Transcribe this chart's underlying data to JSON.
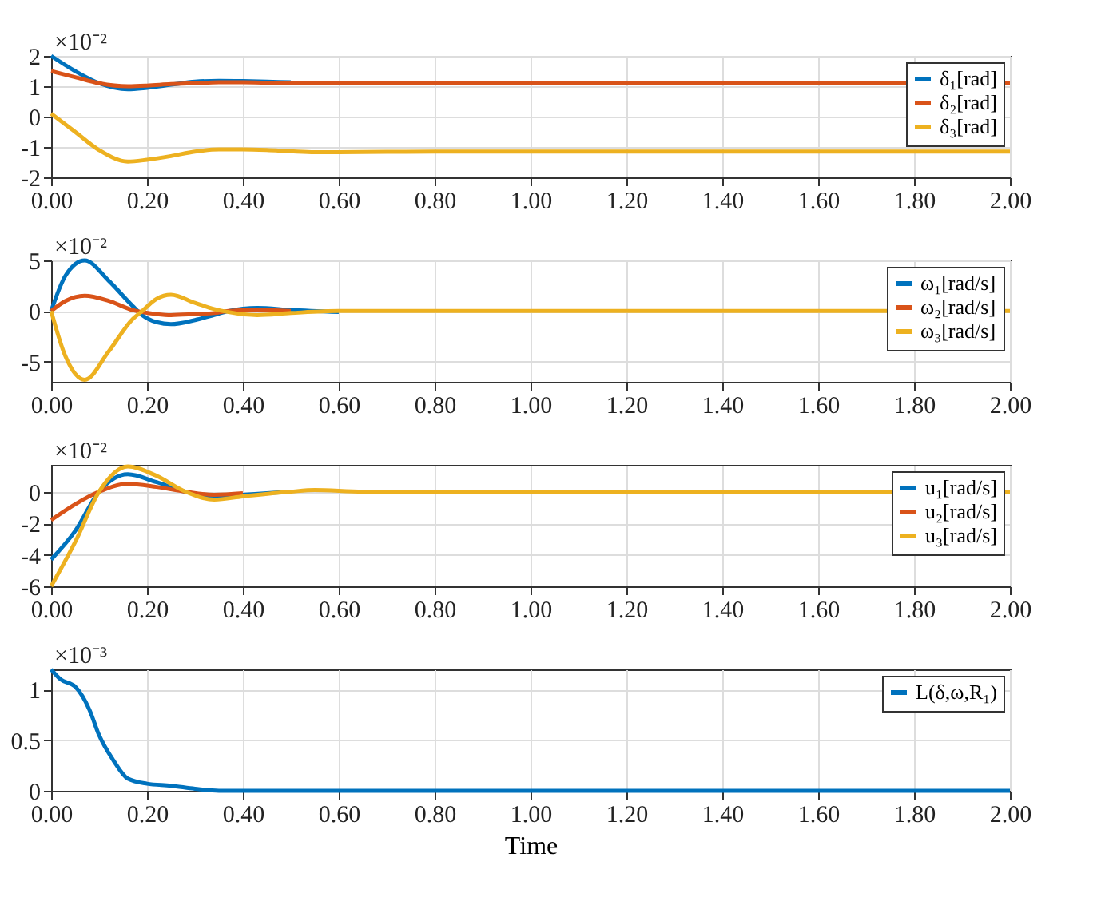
{
  "chart_data": [
    {
      "type": "line",
      "annotations": [
        "×10⁻²"
      ],
      "xlim": [
        0,
        2
      ],
      "xticks": [
        {
          "value": 0,
          "label": "0.00"
        },
        {
          "value": 0.2,
          "label": "0.20"
        },
        {
          "value": 0.4,
          "label": "0.40"
        },
        {
          "value": 0.6,
          "label": "0.60"
        },
        {
          "value": 0.8,
          "label": "0.80"
        },
        {
          "value": 1,
          "label": "1.00"
        },
        {
          "value": 1.2,
          "label": "1.20"
        },
        {
          "value": 1.4,
          "label": "1.40"
        },
        {
          "value": 1.6,
          "label": "1.60"
        },
        {
          "value": 1.8,
          "label": "1.80"
        },
        {
          "value": 2,
          "label": "2.00"
        }
      ],
      "ylim": [
        -2,
        2
      ],
      "yticks": [
        -2,
        -1,
        0,
        1,
        2
      ],
      "grid": true,
      "legend": "top right",
      "line_style": "solid",
      "marker": "none",
      "x": [
        0,
        0.05,
        0.1,
        0.16,
        0.2,
        0.25,
        0.3,
        0.35,
        0.4,
        0.45,
        0.5,
        0.55,
        0.6,
        0.8,
        1.0,
        1.5,
        2.0
      ],
      "series": [
        {
          "name": "δ₁[rad]",
          "color": "#0072bd",
          "values": [
            2.0,
            1.5,
            1.1,
            0.9,
            0.95,
            1.05,
            1.15,
            1.18,
            1.17,
            1.15,
            1.13,
            null,
            null,
            null,
            null,
            null,
            null
          ]
        },
        {
          "name": "δ₂[rad]",
          "color": "#d95319",
          "values": [
            1.5,
            1.3,
            1.1,
            1.0,
            1.02,
            1.07,
            1.1,
            1.13,
            1.13,
            1.12,
            1.12,
            1.12,
            1.12,
            1.12,
            1.12,
            1.12,
            1.12
          ]
        },
        {
          "name": "δ₃[rad]",
          "color": "#edb120",
          "values": [
            0.1,
            -0.5,
            -1.1,
            -1.48,
            -1.42,
            -1.3,
            -1.15,
            -1.08,
            -1.08,
            -1.1,
            -1.14,
            -1.17,
            -1.17,
            -1.15,
            -1.15,
            -1.15,
            -1.15
          ]
        }
      ]
    },
    {
      "type": "line",
      "annotations": [
        "×10⁻²"
      ],
      "xlim": [
        0,
        2
      ],
      "xticks": [
        {
          "value": 0,
          "label": "0.00"
        },
        {
          "value": 0.2,
          "label": "0.20"
        },
        {
          "value": 0.4,
          "label": "0.40"
        },
        {
          "value": 0.6,
          "label": "0.60"
        },
        {
          "value": 0.8,
          "label": "0.80"
        },
        {
          "value": 1,
          "label": "1.00"
        },
        {
          "value": 1.2,
          "label": "1.20"
        },
        {
          "value": 1.4,
          "label": "1.40"
        },
        {
          "value": 1.6,
          "label": "1.60"
        },
        {
          "value": 1.8,
          "label": "1.80"
        },
        {
          "value": 2,
          "label": "2.00"
        }
      ],
      "ylim": [
        -7,
        5
      ],
      "yticks": [
        -5,
        0,
        5
      ],
      "grid": true,
      "legend": "top right",
      "line_style": "solid",
      "marker": "none",
      "x": [
        0,
        0.03,
        0.07,
        0.12,
        0.17,
        0.19,
        0.22,
        0.25,
        0.3,
        0.34,
        0.37,
        0.43,
        0.5,
        0.6,
        0.7,
        1.0,
        1.5,
        2.0
      ],
      "series": [
        {
          "name": "ω₁[rad/s]",
          "color": "#0072bd",
          "values": [
            0,
            3.5,
            5.0,
            3.0,
            0.5,
            -0.4,
            -1.1,
            -1.3,
            -0.9,
            -0.4,
            0,
            0.3,
            0.1,
            -0.1,
            null,
            null,
            null,
            null
          ]
        },
        {
          "name": "ω₂[rad/s]",
          "color": "#d95319",
          "values": [
            0,
            1.0,
            1.5,
            1.0,
            0.1,
            -0.1,
            -0.3,
            -0.4,
            -0.3,
            -0.2,
            0,
            0.1,
            0,
            null,
            null,
            null,
            null,
            null
          ]
        },
        {
          "name": "ω₃[rad/s]",
          "color": "#edb120",
          "values": [
            0,
            -4.5,
            -6.8,
            -4.0,
            -0.8,
            0,
            1.2,
            1.6,
            0.8,
            0.2,
            -0.1,
            -0.4,
            -0.2,
            0,
            0,
            0,
            0,
            0
          ]
        }
      ]
    },
    {
      "type": "line",
      "annotations": [
        "×10⁻²"
      ],
      "xlim": [
        0,
        2
      ],
      "xticks": [
        {
          "value": 0,
          "label": "0.00"
        },
        {
          "value": 0.2,
          "label": "0.20"
        },
        {
          "value": 0.4,
          "label": "0.40"
        },
        {
          "value": 0.6,
          "label": "0.60"
        },
        {
          "value": 0.8,
          "label": "0.80"
        },
        {
          "value": 1,
          "label": "1.00"
        },
        {
          "value": 1.2,
          "label": "1.20"
        },
        {
          "value": 1.4,
          "label": "1.40"
        },
        {
          "value": 1.6,
          "label": "1.60"
        },
        {
          "value": 1.8,
          "label": "1.80"
        },
        {
          "value": 2,
          "label": "2.00"
        }
      ],
      "ylim": [
        -6,
        1.7
      ],
      "yticks": [
        -6,
        -4,
        -2,
        0
      ],
      "grid": true,
      "legend": "top right",
      "line_style": "solid",
      "marker": "none",
      "x": [
        0,
        0.05,
        0.1,
        0.16,
        0.22,
        0.28,
        0.34,
        0.4,
        0.5,
        0.55,
        0.65,
        0.8,
        1.0,
        1.5,
        2.0
      ],
      "series": [
        {
          "name": "u₁[rad/s]",
          "color": "#0072bd",
          "values": [
            -4.3,
            -2.5,
            0,
            1.1,
            0.6,
            0,
            -0.3,
            -0.2,
            0,
            null,
            null,
            null,
            null,
            null,
            null
          ]
        },
        {
          "name": "u₂[rad/s]",
          "color": "#d95319",
          "values": [
            -1.8,
            -0.8,
            0,
            0.5,
            0.3,
            0,
            -0.2,
            -0.1,
            null,
            null,
            null,
            null,
            null,
            null,
            null
          ]
        },
        {
          "name": "u₃[rad/s]",
          "color": "#edb120",
          "values": [
            -6.0,
            -3.2,
            0,
            1.6,
            1.0,
            0,
            -0.5,
            -0.3,
            0,
            0.1,
            0,
            0,
            0,
            0,
            0
          ]
        }
      ]
    },
    {
      "type": "line",
      "annotations": [
        "×10⁻³"
      ],
      "xlabel": "Time",
      "xlim": [
        0,
        2
      ],
      "xticks": [
        {
          "value": 0,
          "label": "0.00"
        },
        {
          "value": 0.2,
          "label": "0.20"
        },
        {
          "value": 0.4,
          "label": "0.40"
        },
        {
          "value": 0.6,
          "label": "0.60"
        },
        {
          "value": 0.8,
          "label": "0.80"
        },
        {
          "value": 1,
          "label": "1.00"
        },
        {
          "value": 1.2,
          "label": "1.20"
        },
        {
          "value": 1.4,
          "label": "1.40"
        },
        {
          "value": 1.6,
          "label": "1.60"
        },
        {
          "value": 1.8,
          "label": "1.80"
        },
        {
          "value": 2,
          "label": "2.00"
        }
      ],
      "ylim": [
        0,
        1.2
      ],
      "yticks": [
        0,
        0.5,
        1
      ],
      "grid": true,
      "legend": "top right",
      "line_style": "solid",
      "marker": "none",
      "x": [
        0,
        0.02,
        0.05,
        0.08,
        0.1,
        0.13,
        0.16,
        0.2,
        0.25,
        0.3,
        0.35,
        0.5,
        1.0,
        1.5,
        2.0
      ],
      "series": [
        {
          "name": "L(δ,ω,R₁)",
          "color": "#0072bd",
          "values": [
            1.2,
            1.1,
            1.03,
            0.8,
            0.55,
            0.3,
            0.12,
            0.07,
            0.05,
            0.02,
            0,
            0,
            0,
            0,
            0
          ]
        }
      ]
    }
  ]
}
